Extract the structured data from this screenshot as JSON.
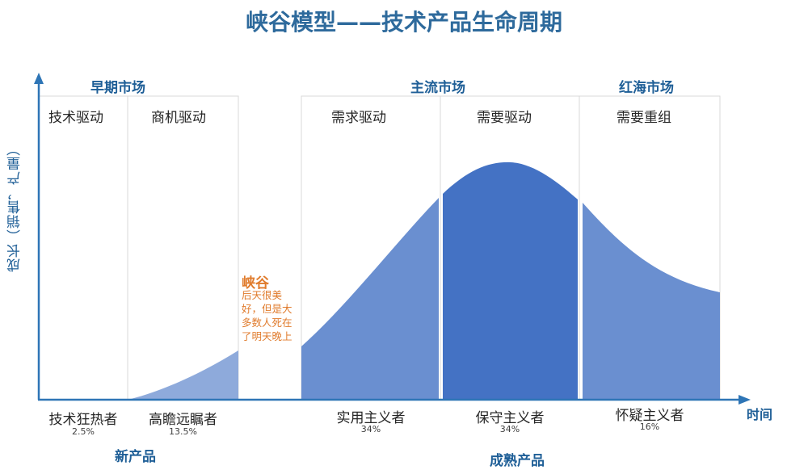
{
  "title": "峡谷模型——技术产品生命周期",
  "y_axis_label": "成长（销售，产量）",
  "x_axis_label": "时间",
  "markets": {
    "early": "早期市场",
    "mainstream": "主流市场",
    "red_ocean": "红海市场"
  },
  "phases": {
    "tech_driven": "技术驱动",
    "business_driven": "商机驱动",
    "demand_driven": "需求驱动",
    "need_driven": "需要驱动",
    "restructure": "需要重组"
  },
  "adopters": [
    {
      "name": "技术狂热者",
      "pct": "2.5%"
    },
    {
      "name": "高瞻远瞩者",
      "pct": "13.5%"
    },
    {
      "name": "实用主义者",
      "pct": "34%"
    },
    {
      "name": "保守主义者",
      "pct": "34%"
    },
    {
      "name": "怀疑主义者",
      "pct": "16%"
    }
  ],
  "bottom_labels": {
    "new_product": "新产品",
    "mature_product": "成熟产品"
  },
  "chasm": {
    "title": "峡谷",
    "note": "后天很美好，但是大多数人死在了明天晚上"
  },
  "colors": {
    "title": "#2e6a9c",
    "axis": "#2e75b6",
    "light_fill": "#8eaadb",
    "mid_fill": "#6a8fd0",
    "dark_fill": "#4472c4",
    "chasm_text": "#e07b2c"
  }
}
